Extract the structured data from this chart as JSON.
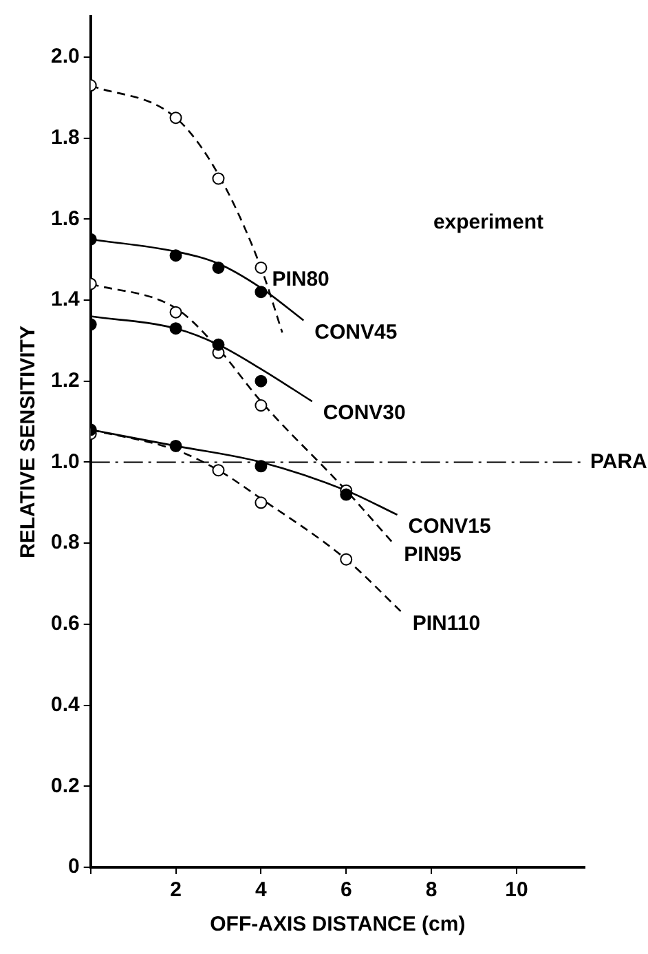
{
  "chart_data": {
    "type": "scatter",
    "xlabel": "OFF-AXIS DISTANCE (cm)",
    "ylabel": "RELATIVE SENSITIVITY",
    "xlim": [
      0,
      11.6
    ],
    "ylim": [
      0,
      2.1
    ],
    "xticks": [
      {
        "value": 0,
        "label": null
      },
      2,
      4,
      6,
      8,
      10
    ],
    "yticks": [
      {
        "value": 0,
        "label": "0"
      },
      0.2,
      0.4,
      0.6,
      0.8,
      {
        "value": 1,
        "label": "1.0"
      },
      1.2,
      1.4,
      1.6,
      1.8,
      {
        "value": 2,
        "label": "2.0"
      }
    ],
    "grid": false,
    "legend": false,
    "series": [
      {
        "type": "line",
        "name": "PIN80",
        "color": "#000000",
        "line_style": "dashed",
        "marker": "none",
        "x": [
          0,
          2,
          3,
          4,
          4.5
        ],
        "values": [
          1.93,
          1.85,
          1.71,
          1.48,
          1.32
        ]
      },
      {
        "type": "line",
        "name": "CONV45",
        "color": "#000000",
        "line_style": "solid",
        "marker": "none",
        "x": [
          0,
          2,
          3,
          4,
          5
        ],
        "values": [
          1.55,
          1.52,
          1.49,
          1.43,
          1.35
        ]
      },
      {
        "type": "line",
        "name": "CONV30",
        "color": "#000000",
        "line_style": "solid",
        "marker": "none",
        "x": [
          0,
          2,
          3,
          4,
          5.2
        ],
        "values": [
          1.36,
          1.33,
          1.29,
          1.23,
          1.15
        ]
      },
      {
        "type": "line",
        "name": "PIN95",
        "color": "#000000",
        "line_style": "dashed",
        "marker": "none",
        "x": [
          0,
          2,
          3,
          4,
          6,
          7.1
        ],
        "values": [
          1.44,
          1.38,
          1.28,
          1.15,
          0.93,
          0.8
        ]
      },
      {
        "type": "line",
        "name": "CONV15",
        "color": "#000000",
        "line_style": "solid",
        "marker": "none",
        "x": [
          0,
          2,
          4,
          6,
          7.2
        ],
        "values": [
          1.08,
          1.04,
          1.0,
          0.93,
          0.87
        ]
      },
      {
        "type": "line",
        "name": "PIN110",
        "color": "#000000",
        "line_style": "dashed",
        "marker": "none",
        "x": [
          0,
          2,
          3,
          4,
          6,
          7.3
        ],
        "values": [
          1.08,
          1.03,
          0.98,
          0.91,
          0.76,
          0.63
        ]
      },
      {
        "type": "scatter",
        "color": "#ffffff",
        "marker": "circle",
        "x": [
          0,
          2,
          3,
          4
        ],
        "values": [
          1.93,
          1.85,
          1.7,
          1.48
        ]
      },
      {
        "type": "scatter",
        "color": "#ffffff",
        "marker": "circle",
        "x": [
          0,
          2,
          3,
          4,
          6
        ],
        "values": [
          1.44,
          1.37,
          1.27,
          1.14,
          0.93
        ]
      },
      {
        "type": "scatter",
        "color": "#ffffff",
        "marker": "circle",
        "x": [
          0,
          3,
          4,
          6
        ],
        "values": [
          1.07,
          0.98,
          0.9,
          0.76
        ]
      },
      {
        "type": "scatter",
        "color": "#000000",
        "marker": "circle",
        "x": [
          0,
          2,
          3,
          4
        ],
        "values": [
          1.55,
          1.51,
          1.48,
          1.42
        ]
      },
      {
        "type": "scatter",
        "color": "#000000",
        "marker": "circle",
        "x": [
          0,
          2,
          3,
          4
        ],
        "values": [
          1.34,
          1.33,
          1.29,
          1.2
        ]
      },
      {
        "type": "scatter",
        "color": "#000000",
        "marker": "circle",
        "x": [
          0,
          2,
          4,
          6
        ],
        "values": [
          1.08,
          1.04,
          0.99,
          0.92
        ]
      }
    ],
    "ref_lines": [
      {
        "axis": "y",
        "value": 1.0,
        "label": "PARA",
        "color": "#000000",
        "line_style": "dashed"
      }
    ],
    "annotations": [
      "experiment"
    ]
  }
}
